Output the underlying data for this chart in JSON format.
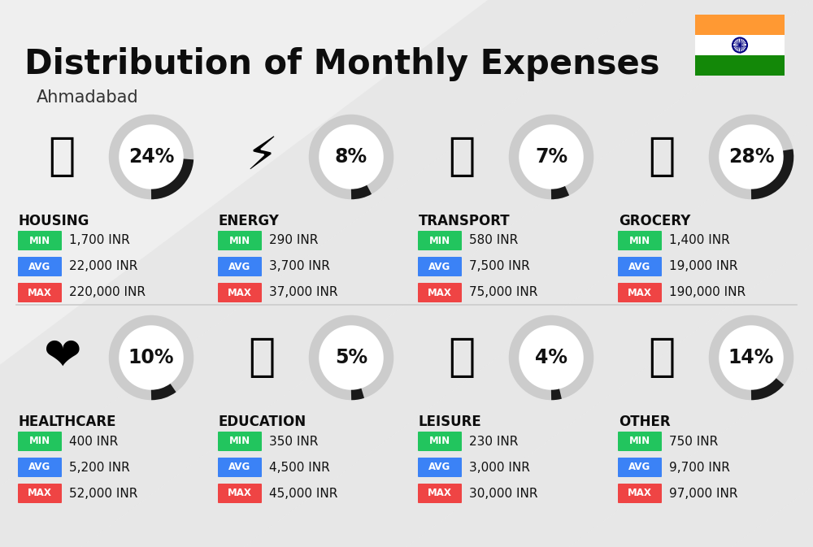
{
  "title": "Distribution of Monthly Expenses",
  "subtitle": "Ahmadabad",
  "background_color": "#efefef",
  "categories": [
    {
      "name": "HOUSING",
      "pct": 24,
      "icon_text": "🏗",
      "min_val": "1,700 INR",
      "avg_val": "22,000 INR",
      "max_val": "220,000 INR",
      "row": 0,
      "col": 0
    },
    {
      "name": "ENERGY",
      "pct": 8,
      "icon_text": "⚡",
      "min_val": "290 INR",
      "avg_val": "3,700 INR",
      "max_val": "37,000 INR",
      "row": 0,
      "col": 1
    },
    {
      "name": "TRANSPORT",
      "pct": 7,
      "icon_text": "🚌",
      "min_val": "580 INR",
      "avg_val": "7,500 INR",
      "max_val": "75,000 INR",
      "row": 0,
      "col": 2
    },
    {
      "name": "GROCERY",
      "pct": 28,
      "icon_text": "🛒",
      "min_val": "1,400 INR",
      "avg_val": "19,000 INR",
      "max_val": "190,000 INR",
      "row": 0,
      "col": 3
    },
    {
      "name": "HEALTHCARE",
      "pct": 10,
      "icon_text": "❤",
      "min_val": "400 INR",
      "avg_val": "5,200 INR",
      "max_val": "52,000 INR",
      "row": 1,
      "col": 0
    },
    {
      "name": "EDUCATION",
      "pct": 5,
      "icon_text": "🎓",
      "min_val": "350 INR",
      "avg_val": "4,500 INR",
      "max_val": "45,000 INR",
      "row": 1,
      "col": 1
    },
    {
      "name": "LEISURE",
      "pct": 4,
      "icon_text": "🛍",
      "min_val": "230 INR",
      "avg_val": "3,000 INR",
      "max_val": "30,000 INR",
      "row": 1,
      "col": 2
    },
    {
      "name": "OTHER",
      "pct": 14,
      "icon_text": "💰",
      "min_val": "750 INR",
      "avg_val": "9,700 INR",
      "max_val": "97,000 INR",
      "row": 1,
      "col": 3
    }
  ],
  "min_color": "#22c55e",
  "avg_color": "#3b82f6",
  "max_color": "#ef4444",
  "donut_bg_color": "#cccccc",
  "donut_fill_color": "#1a1a1a",
  "title_fontsize": 30,
  "subtitle_fontsize": 15,
  "category_fontsize": 12,
  "value_fontsize": 11,
  "pct_fontsize": 17,
  "india_flag_orange": "#FF9933",
  "india_flag_green": "#138808",
  "india_flag_blue": "#000080"
}
